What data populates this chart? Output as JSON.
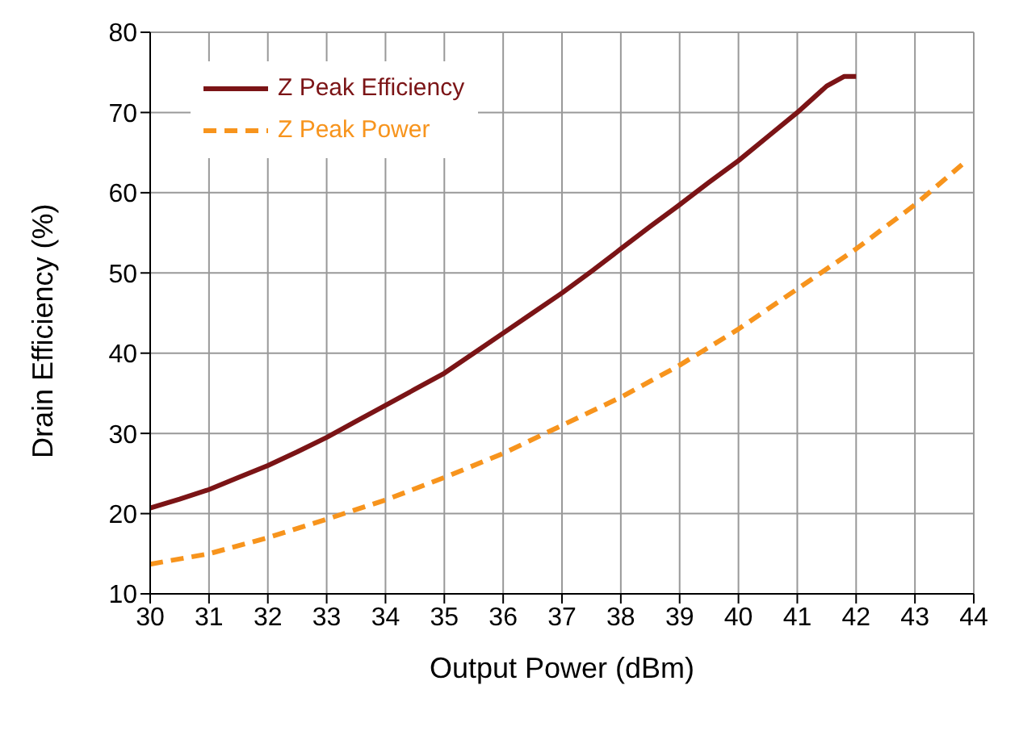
{
  "chart_data": {
    "type": "line",
    "xlabel": "Output Power (dBm)",
    "ylabel": "Drain Efficiency (%)",
    "xlim": [
      30,
      44
    ],
    "xticks": [
      30,
      31,
      32,
      33,
      34,
      35,
      36,
      37,
      38,
      39,
      40,
      41,
      42,
      43,
      44
    ],
    "ylim": [
      10,
      80
    ],
    "yticks": [
      10,
      20,
      30,
      40,
      50,
      60,
      70,
      80
    ],
    "grid": true,
    "legend": "top left",
    "series": [
      {
        "name": "Z Peak Efficiency",
        "color": "#7b1416",
        "line_style": "solid",
        "x": [
          30,
          30.5,
          31,
          31.5,
          32,
          32.5,
          33,
          33.5,
          34,
          34.5,
          35,
          35.5,
          36,
          36.5,
          37,
          37.5,
          38,
          38.5,
          39,
          39.5,
          40,
          40.5,
          41,
          41.5,
          41.8,
          42
        ],
        "values": [
          20.7,
          21.8,
          23,
          24.5,
          26,
          27.7,
          29.5,
          31.5,
          33.5,
          35.5,
          37.5,
          40,
          42.5,
          45,
          47.5,
          50.2,
          53,
          55.8,
          58.5,
          61.3,
          64,
          67,
          70,
          73.3,
          74.5,
          74.5
        ]
      },
      {
        "name": "Z Peak Power",
        "color": "#f7941d",
        "line_style": "dashed",
        "x": [
          30,
          31,
          32,
          33,
          34,
          35,
          36,
          37,
          38,
          39,
          40,
          41,
          42,
          43,
          43.8
        ],
        "values": [
          13.7,
          15,
          17,
          19.3,
          21.7,
          24.5,
          27.5,
          31,
          34.5,
          38.5,
          43,
          48,
          53,
          58.5,
          63.5
        ]
      }
    ]
  }
}
